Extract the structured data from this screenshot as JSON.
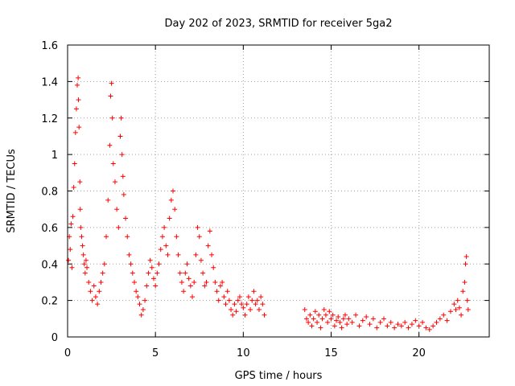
{
  "chart_data": {
    "type": "scatter",
    "title": "Day 202 of 2023, SRMTID for receiver 5ga2",
    "xlabel": "GPS time / hours",
    "ylabel": "SRMTID / TECUs",
    "xlim": [
      0,
      24
    ],
    "ylim": [
      0,
      1.6
    ],
    "xticks": [
      0,
      5,
      10,
      15,
      20
    ],
    "xtick_labels": [
      "0",
      "5",
      "10",
      "15",
      "20"
    ],
    "yticks": [
      0,
      0.2,
      0.4,
      0.6,
      0.8,
      1,
      1.2,
      1.4,
      1.6
    ],
    "ytick_labels": [
      "0",
      "0.2",
      "0.4",
      "0.6",
      "0.8",
      "1",
      "1.2",
      "1.4",
      "1.6"
    ],
    "grid": true,
    "marker": "+",
    "series": [
      {
        "name": "SRMTID",
        "color": "#ff0000",
        "points": [
          [
            0.05,
            0.42
          ],
          [
            0.1,
            0.55
          ],
          [
            0.15,
            0.48
          ],
          [
            0.2,
            0.62
          ],
          [
            0.25,
            0.38
          ],
          [
            0.3,
            0.66
          ],
          [
            0.35,
            0.82
          ],
          [
            0.4,
            0.95
          ],
          [
            0.45,
            1.12
          ],
          [
            0.5,
            1.25
          ],
          [
            0.55,
            1.38
          ],
          [
            0.6,
            1.42
          ],
          [
            0.62,
            1.3
          ],
          [
            0.65,
            1.15
          ],
          [
            0.7,
            0.85
          ],
          [
            0.72,
            0.7
          ],
          [
            0.75,
            0.6
          ],
          [
            0.8,
            0.55
          ],
          [
            0.85,
            0.5
          ],
          [
            0.9,
            0.45
          ],
          [
            0.95,
            0.4
          ],
          [
            1.0,
            0.35
          ],
          [
            1.05,
            0.42
          ],
          [
            1.1,
            0.38
          ],
          [
            1.2,
            0.3
          ],
          [
            1.3,
            0.25
          ],
          [
            1.4,
            0.2
          ],
          [
            1.5,
            0.28
          ],
          [
            1.6,
            0.22
          ],
          [
            1.7,
            0.18
          ],
          [
            1.8,
            0.25
          ],
          [
            1.9,
            0.3
          ],
          [
            2.0,
            0.35
          ],
          [
            2.1,
            0.4
          ],
          [
            2.2,
            0.55
          ],
          [
            2.3,
            0.75
          ],
          [
            2.4,
            1.05
          ],
          [
            2.45,
            1.32
          ],
          [
            2.5,
            1.39
          ],
          [
            2.55,
            1.2
          ],
          [
            2.6,
            0.95
          ],
          [
            2.7,
            0.85
          ],
          [
            2.8,
            0.7
          ],
          [
            2.9,
            0.6
          ],
          [
            3.0,
            1.1
          ],
          [
            3.05,
            1.2
          ],
          [
            3.1,
            1.0
          ],
          [
            3.15,
            0.88
          ],
          [
            3.2,
            0.78
          ],
          [
            3.3,
            0.65
          ],
          [
            3.4,
            0.55
          ],
          [
            3.5,
            0.45
          ],
          [
            3.6,
            0.4
          ],
          [
            3.7,
            0.35
          ],
          [
            3.8,
            0.3
          ],
          [
            3.9,
            0.25
          ],
          [
            4.0,
            0.22
          ],
          [
            4.1,
            0.18
          ],
          [
            4.2,
            0.12
          ],
          [
            4.3,
            0.15
          ],
          [
            4.4,
            0.2
          ],
          [
            4.5,
            0.28
          ],
          [
            4.6,
            0.35
          ],
          [
            4.7,
            0.42
          ],
          [
            4.8,
            0.38
          ],
          [
            4.9,
            0.32
          ],
          [
            5.0,
            0.28
          ],
          [
            5.1,
            0.35
          ],
          [
            5.2,
            0.4
          ],
          [
            5.3,
            0.48
          ],
          [
            5.4,
            0.55
          ],
          [
            5.5,
            0.6
          ],
          [
            5.6,
            0.5
          ],
          [
            5.7,
            0.45
          ],
          [
            5.8,
            0.65
          ],
          [
            5.9,
            0.75
          ],
          [
            6.0,
            0.8
          ],
          [
            6.1,
            0.7
          ],
          [
            6.2,
            0.55
          ],
          [
            6.3,
            0.45
          ],
          [
            6.4,
            0.35
          ],
          [
            6.5,
            0.3
          ],
          [
            6.6,
            0.25
          ],
          [
            6.7,
            0.35
          ],
          [
            6.8,
            0.4
          ],
          [
            6.9,
            0.32
          ],
          [
            7.0,
            0.28
          ],
          [
            7.1,
            0.22
          ],
          [
            7.2,
            0.3
          ],
          [
            7.3,
            0.45
          ],
          [
            7.4,
            0.6
          ],
          [
            7.5,
            0.55
          ],
          [
            7.6,
            0.42
          ],
          [
            7.7,
            0.35
          ],
          [
            7.8,
            0.28
          ],
          [
            7.9,
            0.3
          ],
          [
            8.0,
            0.5
          ],
          [
            8.1,
            0.58
          ],
          [
            8.2,
            0.45
          ],
          [
            8.3,
            0.38
          ],
          [
            8.4,
            0.3
          ],
          [
            8.5,
            0.25
          ],
          [
            8.6,
            0.2
          ],
          [
            8.7,
            0.28
          ],
          [
            8.8,
            0.3
          ],
          [
            8.9,
            0.22
          ],
          [
            9.0,
            0.18
          ],
          [
            9.1,
            0.25
          ],
          [
            9.2,
            0.2
          ],
          [
            9.3,
            0.15
          ],
          [
            9.4,
            0.12
          ],
          [
            9.5,
            0.18
          ],
          [
            9.6,
            0.14
          ],
          [
            9.7,
            0.2
          ],
          [
            9.8,
            0.22
          ],
          [
            9.9,
            0.18
          ],
          [
            10.0,
            0.16
          ],
          [
            10.1,
            0.12
          ],
          [
            10.2,
            0.18
          ],
          [
            10.3,
            0.22
          ],
          [
            10.4,
            0.15
          ],
          [
            10.5,
            0.2
          ],
          [
            10.6,
            0.25
          ],
          [
            10.7,
            0.18
          ],
          [
            10.8,
            0.2
          ],
          [
            10.9,
            0.15
          ],
          [
            11.0,
            0.22
          ],
          [
            11.1,
            0.18
          ],
          [
            11.2,
            0.12
          ],
          [
            13.5,
            0.15
          ],
          [
            13.6,
            0.1
          ],
          [
            13.7,
            0.08
          ],
          [
            13.8,
            0.12
          ],
          [
            13.9,
            0.06
          ],
          [
            14.0,
            0.1
          ],
          [
            14.1,
            0.14
          ],
          [
            14.2,
            0.08
          ],
          [
            14.3,
            0.12
          ],
          [
            14.4,
            0.05
          ],
          [
            14.5,
            0.1
          ],
          [
            14.6,
            0.15
          ],
          [
            14.7,
            0.12
          ],
          [
            14.8,
            0.08
          ],
          [
            14.9,
            0.14
          ],
          [
            15.0,
            0.1
          ],
          [
            15.1,
            0.12
          ],
          [
            15.2,
            0.06
          ],
          [
            15.3,
            0.09
          ],
          [
            15.4,
            0.11
          ],
          [
            15.5,
            0.08
          ],
          [
            15.6,
            0.05
          ],
          [
            15.7,
            0.1
          ],
          [
            15.8,
            0.12
          ],
          [
            15.9,
            0.07
          ],
          [
            16.0,
            0.1
          ],
          [
            16.2,
            0.08
          ],
          [
            16.4,
            0.12
          ],
          [
            16.6,
            0.06
          ],
          [
            16.8,
            0.09
          ],
          [
            17.0,
            0.11
          ],
          [
            17.2,
            0.07
          ],
          [
            17.4,
            0.1
          ],
          [
            17.6,
            0.05
          ],
          [
            17.8,
            0.08
          ],
          [
            18.0,
            0.1
          ],
          [
            18.2,
            0.06
          ],
          [
            18.4,
            0.08
          ],
          [
            18.6,
            0.05
          ],
          [
            18.8,
            0.07
          ],
          [
            19.0,
            0.06
          ],
          [
            19.2,
            0.08
          ],
          [
            19.4,
            0.05
          ],
          [
            19.6,
            0.07
          ],
          [
            19.8,
            0.09
          ],
          [
            20.0,
            0.06
          ],
          [
            20.2,
            0.08
          ],
          [
            20.4,
            0.05
          ],
          [
            20.6,
            0.04
          ],
          [
            20.8,
            0.06
          ],
          [
            21.0,
            0.08
          ],
          [
            21.2,
            0.1
          ],
          [
            21.4,
            0.12
          ],
          [
            21.6,
            0.09
          ],
          [
            21.8,
            0.14
          ],
          [
            22.0,
            0.18
          ],
          [
            22.1,
            0.15
          ],
          [
            22.2,
            0.2
          ],
          [
            22.3,
            0.16
          ],
          [
            22.4,
            0.12
          ],
          [
            22.5,
            0.25
          ],
          [
            22.6,
            0.3
          ],
          [
            22.65,
            0.4
          ],
          [
            22.7,
            0.44
          ],
          [
            22.75,
            0.2
          ],
          [
            22.8,
            0.15
          ]
        ]
      }
    ]
  }
}
